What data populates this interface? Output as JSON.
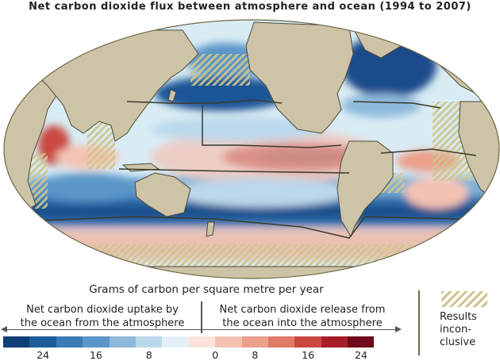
{
  "title": "Net carbon dioxide flux between atmosphere and ocean (1994 to 2007)",
  "units_label": "Grams of carbon per square metre per year",
  "uptake_label": [
    "Net carbon dioxide uptake by",
    "the ocean from the atmosphere"
  ],
  "release_label": [
    "Net carbon dioxide release from",
    "the ocean into the atmosphere"
  ],
  "scale": {
    "colors": [
      "#123f77",
      "#1e5c9a",
      "#3c7bb6",
      "#5c96c9",
      "#8db9dc",
      "#bcd8eb",
      "#e3f0f6",
      "#fbe3dc",
      "#f4c2b3",
      "#ec9f8a",
      "#e07b67",
      "#c9483f",
      "#a61e2a",
      "#6e0a1b"
    ],
    "tick_labels": [
      "24",
      "16",
      "8",
      "0",
      "8",
      "16",
      "24"
    ]
  },
  "legend": {
    "hatch_label": [
      "Results",
      "incon-",
      "clusive"
    ]
  },
  "map_colors": {
    "ocean": "#d9ecf4",
    "land": "#cdc3a7",
    "coast": "#4a4a3a",
    "border": "#6e6747"
  }
}
